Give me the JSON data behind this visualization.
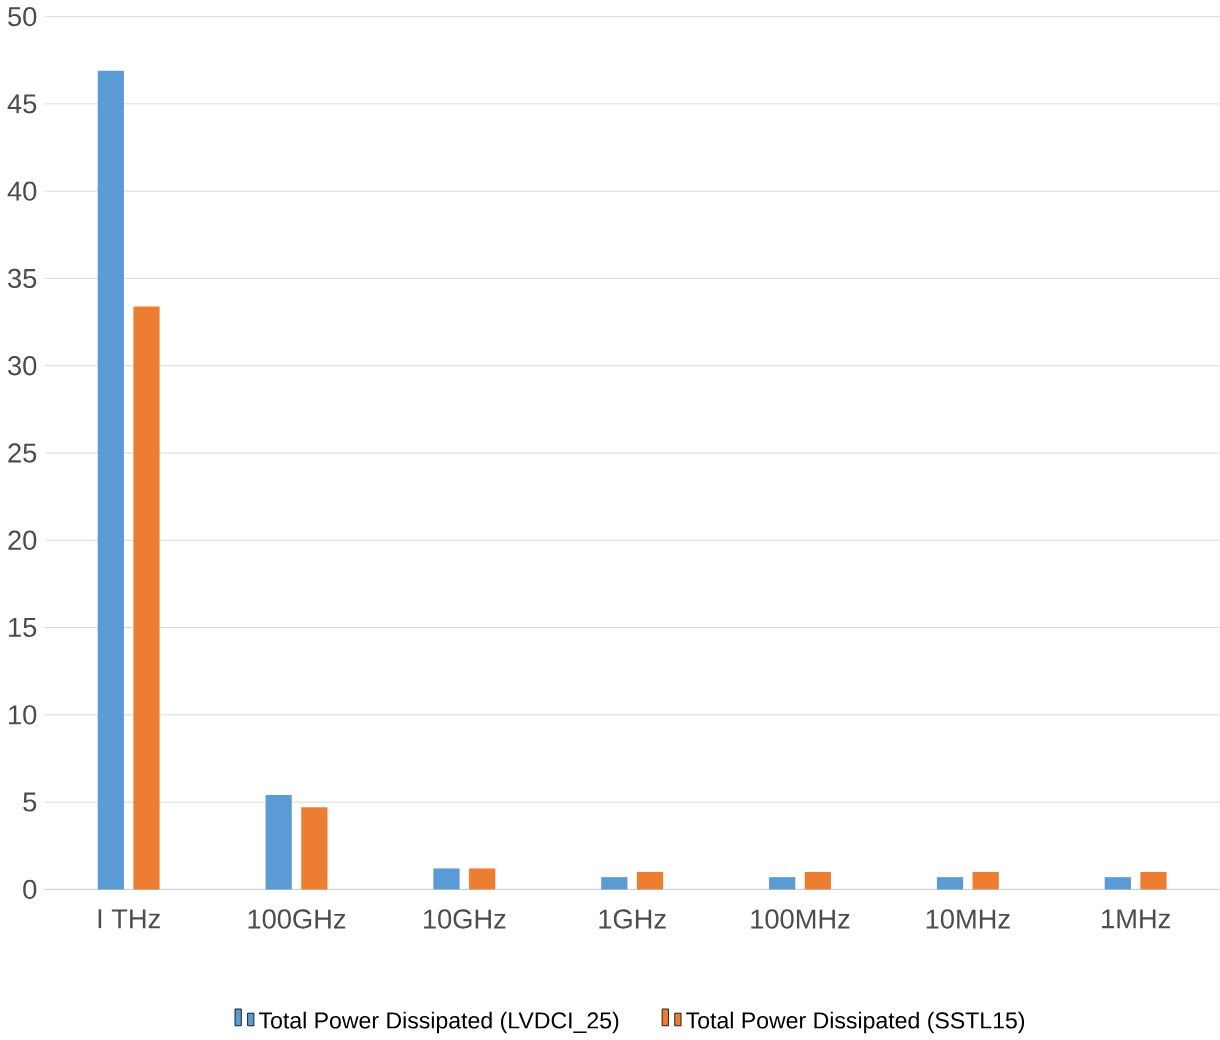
{
  "chart_data": {
    "type": "bar",
    "categories": [
      "I THz",
      "100GHz",
      "10GHz",
      "1GHz",
      "100MHz",
      "10MHz",
      "1MHz"
    ],
    "series": [
      {
        "name": "Total Power Dissipated (LVDCI_25)",
        "color": "#5b9bd5",
        "values": [
          46.9,
          5.4,
          1.2,
          0.7,
          0.7,
          0.7,
          0.7
        ]
      },
      {
        "name": "Total Power Dissipated (SSTL15)",
        "color": "#ed7d31",
        "values": [
          33.4,
          4.7,
          1.2,
          1.0,
          1.0,
          1.0,
          1.0
        ]
      }
    ],
    "ylim": [
      0,
      50
    ],
    "yticks": [
      0,
      5,
      10,
      15,
      20,
      25,
      30,
      35,
      40,
      45,
      50
    ],
    "grid": "y",
    "legend": "bottom"
  }
}
